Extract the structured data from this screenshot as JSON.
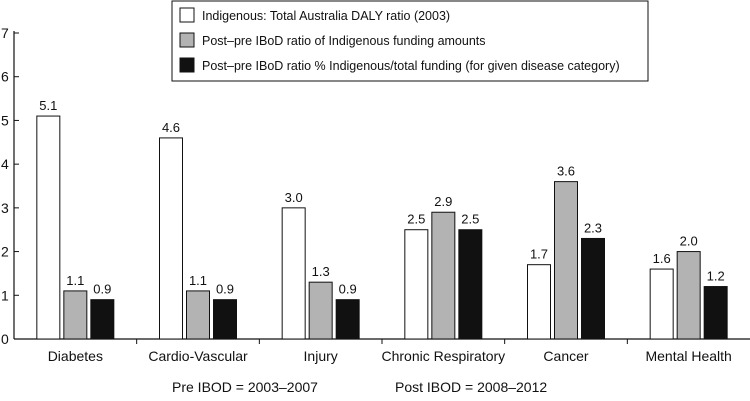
{
  "chart_data": {
    "type": "bar",
    "categories": [
      "Diabetes",
      "Cardio-Vascular",
      "Injury",
      "Chronic Respiratory",
      "Cancer",
      "Mental Health"
    ],
    "series": [
      {
        "name": "Indigenous: Total Australia DALY ratio (2003)",
        "color": "#ffffff",
        "values": [
          5.1,
          4.6,
          3.0,
          2.5,
          1.7,
          1.6
        ],
        "labels": [
          "5.1",
          "4.6",
          "3.0",
          "2.5",
          "1.7",
          "1.6"
        ]
      },
      {
        "name": "Post–pre IBoD ratio of Indigenous funding amounts",
        "color": "#b3b3b3",
        "values": [
          1.1,
          1.1,
          1.3,
          2.9,
          3.6,
          2.0
        ],
        "labels": [
          "1.1",
          "1.1",
          "1.3",
          "2.9",
          "3.6",
          "2.0"
        ]
      },
      {
        "name": "Post–pre IBoD ratio % Indigenous/total funding (for given disease category)",
        "color": "#111111",
        "values": [
          0.9,
          0.9,
          0.9,
          2.5,
          2.3,
          1.2
        ],
        "labels": [
          "0.9",
          "0.9",
          "0.9",
          "2.5",
          "2.3",
          "1.2"
        ]
      }
    ],
    "ylim": [
      0,
      7
    ],
    "yticks": [
      "0",
      "1",
      "2",
      "3",
      "4",
      "5",
      "6",
      "7"
    ],
    "grid": false,
    "legend_position": "top-right",
    "notes": {
      "pre": "Pre IBOD = 2003–2007",
      "post": "Post IBOD = 2008–2012"
    }
  }
}
